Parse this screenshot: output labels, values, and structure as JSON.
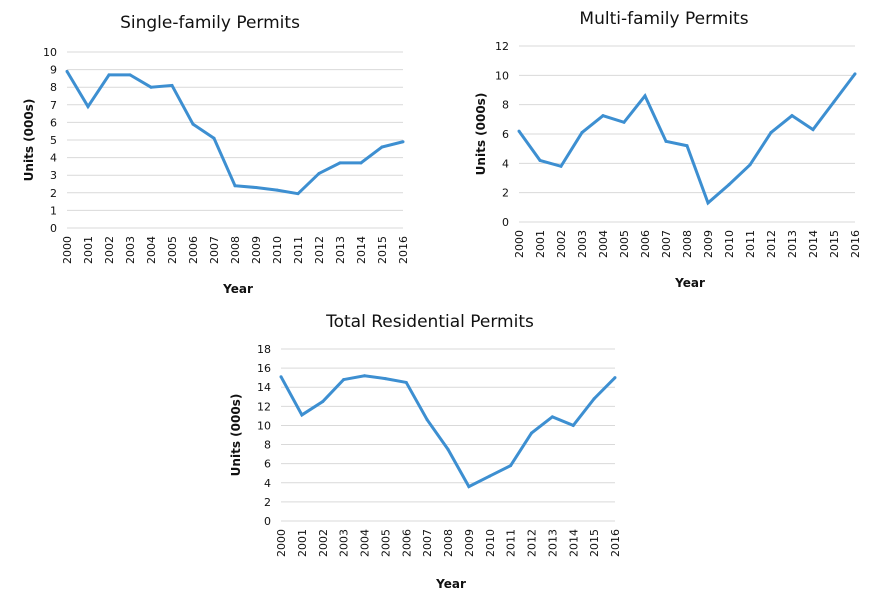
{
  "line_color": "#3d8fd1",
  "grid_color": "#d9d9d9",
  "chart_data": [
    {
      "type": "line",
      "title": "Single-family Permits",
      "xlabel": "Year",
      "ylabel": "Units (000s)",
      "ylim": [
        0,
        10
      ],
      "yticks": [
        0,
        1,
        2,
        3,
        4,
        5,
        6,
        7,
        8,
        9,
        10
      ],
      "grid": true,
      "x": [
        "2000",
        "2001",
        "2002",
        "2003",
        "2004",
        "2005",
        "2006",
        "2007",
        "2008",
        "2009",
        "2010",
        "2011",
        "2012",
        "2013",
        "2014",
        "2015",
        "2016"
      ],
      "values": [
        8.9,
        6.9,
        8.7,
        8.7,
        8.0,
        8.1,
        5.9,
        5.1,
        2.4,
        2.3,
        2.15,
        1.95,
        3.1,
        3.7,
        3.7,
        4.6,
        4.9
      ]
    },
    {
      "type": "line",
      "title": "Multi-family Permits",
      "xlabel": "Year",
      "ylabel": "Units (000s)",
      "ylim": [
        0,
        12
      ],
      "yticks": [
        0,
        2,
        4,
        6,
        8,
        10,
        12
      ],
      "grid": true,
      "x": [
        "2000",
        "2001",
        "2002",
        "2003",
        "2004",
        "2005",
        "2006",
        "2007",
        "2008",
        "2009",
        "2010",
        "2011",
        "2012",
        "2013",
        "2014",
        "2015",
        "2016"
      ],
      "values": [
        6.2,
        4.2,
        3.8,
        6.1,
        7.25,
        6.8,
        8.6,
        5.5,
        5.2,
        1.3,
        2.55,
        3.9,
        6.1,
        7.25,
        6.3,
        8.2,
        10.1
      ]
    },
    {
      "type": "line",
      "title": "Total Residential Permits",
      "xlabel": "Year",
      "ylabel": "Units (000s)",
      "ylim": [
        0,
        18
      ],
      "yticks": [
        0,
        2,
        4,
        6,
        8,
        10,
        12,
        14,
        16,
        18
      ],
      "grid": true,
      "x": [
        "2000",
        "2001",
        "2002",
        "2003",
        "2004",
        "2005",
        "2006",
        "2007",
        "2008",
        "2009",
        "2010",
        "2011",
        "2012",
        "2013",
        "2014",
        "2015",
        "2016"
      ],
      "values": [
        15.1,
        11.1,
        12.5,
        14.8,
        15.2,
        14.9,
        14.5,
        10.6,
        7.5,
        3.6,
        4.7,
        5.8,
        9.2,
        10.9,
        10.0,
        12.8,
        15.0
      ]
    }
  ]
}
